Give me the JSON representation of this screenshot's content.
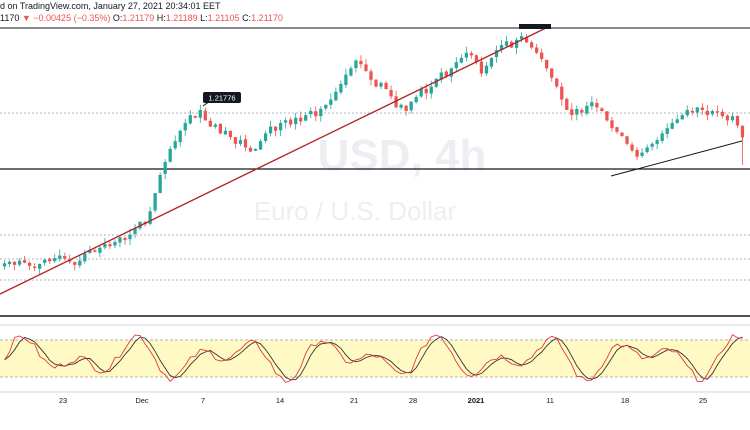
{
  "header": {
    "line1": "d on TradingView.com, January 27, 2021 20:34:01 EET",
    "price_prefix": "1170",
    "change": "▼ −0.00425 (−0.35%)",
    "o_label": "O:",
    "o_value": "1.21179",
    "h_label": "H:",
    "h_value": "1.21189",
    "l_label": "L:",
    "l_value": "1.21105",
    "c_label": "C:",
    "c_value": "1.21170"
  },
  "watermark": {
    "symbol": "USD, 4h",
    "description": "Euro / U.S. Dollar"
  },
  "colors": {
    "bull": "#26a69a",
    "bear": "#ef5350",
    "trendline": "#b22222",
    "stoch_k": "#e53935",
    "stoch_d": "#333333",
    "stoch_band": "#fff9c4"
  },
  "chart_data": {
    "type": "candlestick",
    "symbol": "EURUSD",
    "timeframe": "4h",
    "price_label": "1.21776",
    "x_tick_labels": [
      "23",
      "Dec",
      "7",
      "14",
      "21",
      "28",
      "2021",
      "11",
      "18",
      "25"
    ],
    "price_anchor": {
      "price": 1.21776
    },
    "closes": [
      1.1875,
      1.1878,
      1.1872,
      1.188,
      1.1876,
      1.187,
      1.1866,
      1.1874,
      1.1882,
      1.1879,
      1.1885,
      1.189,
      1.1884,
      1.1878,
      1.1872,
      1.188,
      1.1894,
      1.1901,
      1.1897,
      1.1905,
      1.1912,
      1.1908,
      1.1916,
      1.1925,
      1.192,
      1.193,
      1.1942,
      1.1955,
      1.195,
      1.1975,
      1.201,
      1.2045,
      1.207,
      1.2095,
      1.211,
      1.213,
      1.2145,
      1.216,
      1.2155,
      1.217,
      1.215,
      1.2138,
      1.2142,
      1.2125,
      1.213,
      1.2118,
      1.2105,
      1.2112,
      1.2098,
      1.209,
      1.2095,
      1.211,
      1.2125,
      1.2138,
      1.213,
      1.2145,
      1.215,
      1.2142,
      1.2155,
      1.2148,
      1.216,
      1.2168,
      1.2158,
      1.2172,
      1.218,
      1.219,
      1.2205,
      1.222,
      1.2238,
      1.225,
      1.2265,
      1.2258,
      1.2245,
      1.2228,
      1.2215,
      1.2222,
      1.221,
      1.2196,
      1.2175,
      1.218,
      1.2168,
      1.2186,
      1.2195,
      1.221,
      1.2202,
      1.2215,
      1.223,
      1.2242,
      1.2235,
      1.225,
      1.2262,
      1.227,
      1.228,
      1.2275,
      1.2262,
      1.224,
      1.2255,
      1.227,
      1.2285,
      1.2295,
      1.2302,
      1.229,
      1.2305,
      1.2312,
      1.23,
      1.229,
      1.228,
      1.2268,
      1.225,
      1.2232,
      1.2215,
      1.219,
      1.217,
      1.216,
      1.2172,
      1.2165,
      1.2178,
      1.2185,
      1.2175,
      1.2168,
      1.215,
      1.2135,
      1.2128,
      1.212,
      1.2105,
      1.2092,
      1.208,
      1.2088,
      1.2098,
      1.2105,
      1.2112,
      1.2125,
      1.2135,
      1.2145,
      1.2152,
      1.216,
      1.217,
      1.2165,
      1.2175,
      1.217,
      1.216,
      1.2168,
      1.2165,
      1.2158,
      1.215,
      1.2158,
      1.214,
      1.2117
    ],
    "stochastic": {
      "upper_band": 80,
      "lower_band": 20,
      "ylim": [
        0,
        100
      ]
    }
  }
}
